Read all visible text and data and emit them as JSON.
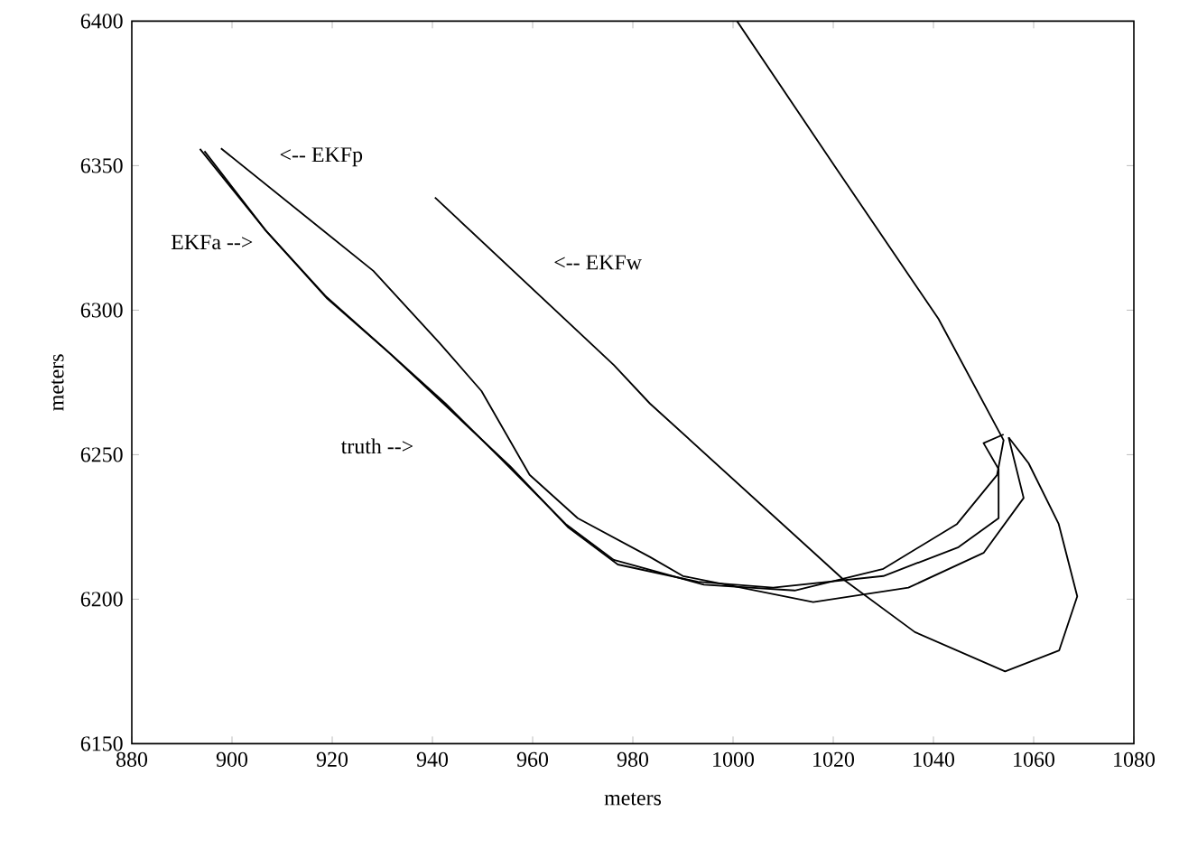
{
  "chart_data": {
    "type": "line",
    "xlabel": "meters",
    "ylabel": "meters",
    "xlim": [
      880,
      1080
    ],
    "ylim": [
      6150,
      6400
    ],
    "xticks": [
      880,
      900,
      920,
      940,
      960,
      980,
      1000,
      1020,
      1040,
      1060,
      1080
    ],
    "yticks": [
      6150,
      6200,
      6250,
      6300,
      6350,
      6400
    ],
    "series": [
      {
        "color": "#000000",
        "x": [
          893.6,
          906.5,
          918.6,
          930.6,
          942.6,
          954.6,
          966.6,
          976.2,
          994.2,
          1012.3,
          1030,
          1044.7,
          1052.7,
          1054,
          1041,
          1020.6,
          1000.8
        ],
        "values": [
          6355.8,
          6328,
          6305,
          6286.5,
          6267.7,
          6247,
          6226,
          6213.6,
          6205,
          6203,
          6210.5,
          6226,
          6243,
          6255,
          6297,
          6349,
          6400
        ]
      },
      {
        "color": "#000000",
        "x": [
          894.5,
          907,
          919,
          931.5,
          942,
          955.5,
          967,
          977,
          993,
          1008,
          1030,
          1045,
          1053,
          1053,
          1050,
          1054
        ],
        "values": [
          6355,
          6327,
          6304,
          6285,
          6268,
          6246,
          6225,
          6212,
          6206,
          6204,
          6208,
          6218,
          6228,
          6245,
          6254,
          6257
        ]
      },
      {
        "color": "#000000",
        "x": [
          897.8,
          928.2,
          941.4,
          949.8,
          959.4,
          969,
          983.4,
          990,
          1016,
          1035,
          1050,
          1058,
          1055
        ],
        "values": [
          6356,
          6313.6,
          6288.7,
          6272,
          6243,
          6228,
          6214.6,
          6208,
          6199,
          6204,
          6216,
          6235,
          6256
        ]
      },
      {
        "color": "#000000",
        "x": [
          940.5,
          976.2,
          983.4,
          1021.9,
          1036.3,
          1054.3,
          1065.1,
          1068.7,
          1065,
          1059,
          1055
        ],
        "values": [
          6339,
          6281,
          6267.7,
          6207,
          6188.6,
          6175,
          6182.3,
          6201,
          6226,
          6247,
          6256
        ]
      }
    ],
    "annotations": [
      "<-- EKFp",
      "EKFa -->",
      "<-- EKFw",
      "truth -->"
    ]
  }
}
